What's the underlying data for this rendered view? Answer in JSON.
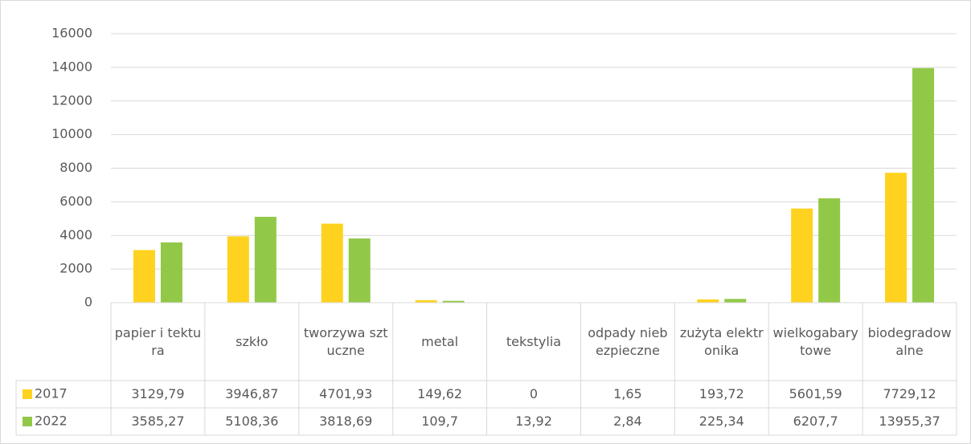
{
  "chart_data": {
    "type": "bar",
    "categories": [
      "papier i tektura",
      "szkło",
      "tworzywa sztuczne",
      "metal",
      "tekstylia",
      "odpady niebezpieczne",
      "zużyta elektronika",
      "wielkogabarytowe",
      "biodegradowalne"
    ],
    "series": [
      {
        "name": "2017",
        "color": "#ffd21f",
        "values": [
          3129.79,
          3946.87,
          4701.93,
          149.62,
          0,
          1.65,
          193.72,
          5601.59,
          7729.12
        ],
        "value_labels": [
          "3129,79",
          "3946,87",
          "4701,93",
          "149,62",
          "0",
          "1,65",
          "193,72",
          "5601,59",
          "7729,12"
        ]
      },
      {
        "name": "2022",
        "color": "#92c848",
        "values": [
          3585.27,
          5108.36,
          3818.69,
          109.7,
          13.92,
          2.84,
          225.34,
          6207.7,
          13955.37
        ],
        "value_labels": [
          "3585,27",
          "5108,36",
          "3818,69",
          "109,7",
          "13,92",
          "2,84",
          "225,34",
          "6207,7",
          "13955,37"
        ]
      }
    ],
    "ylim": [
      0,
      16000
    ],
    "yticks": [
      0,
      2000,
      4000,
      6000,
      8000,
      10000,
      12000,
      14000,
      16000
    ],
    "grid": true
  }
}
